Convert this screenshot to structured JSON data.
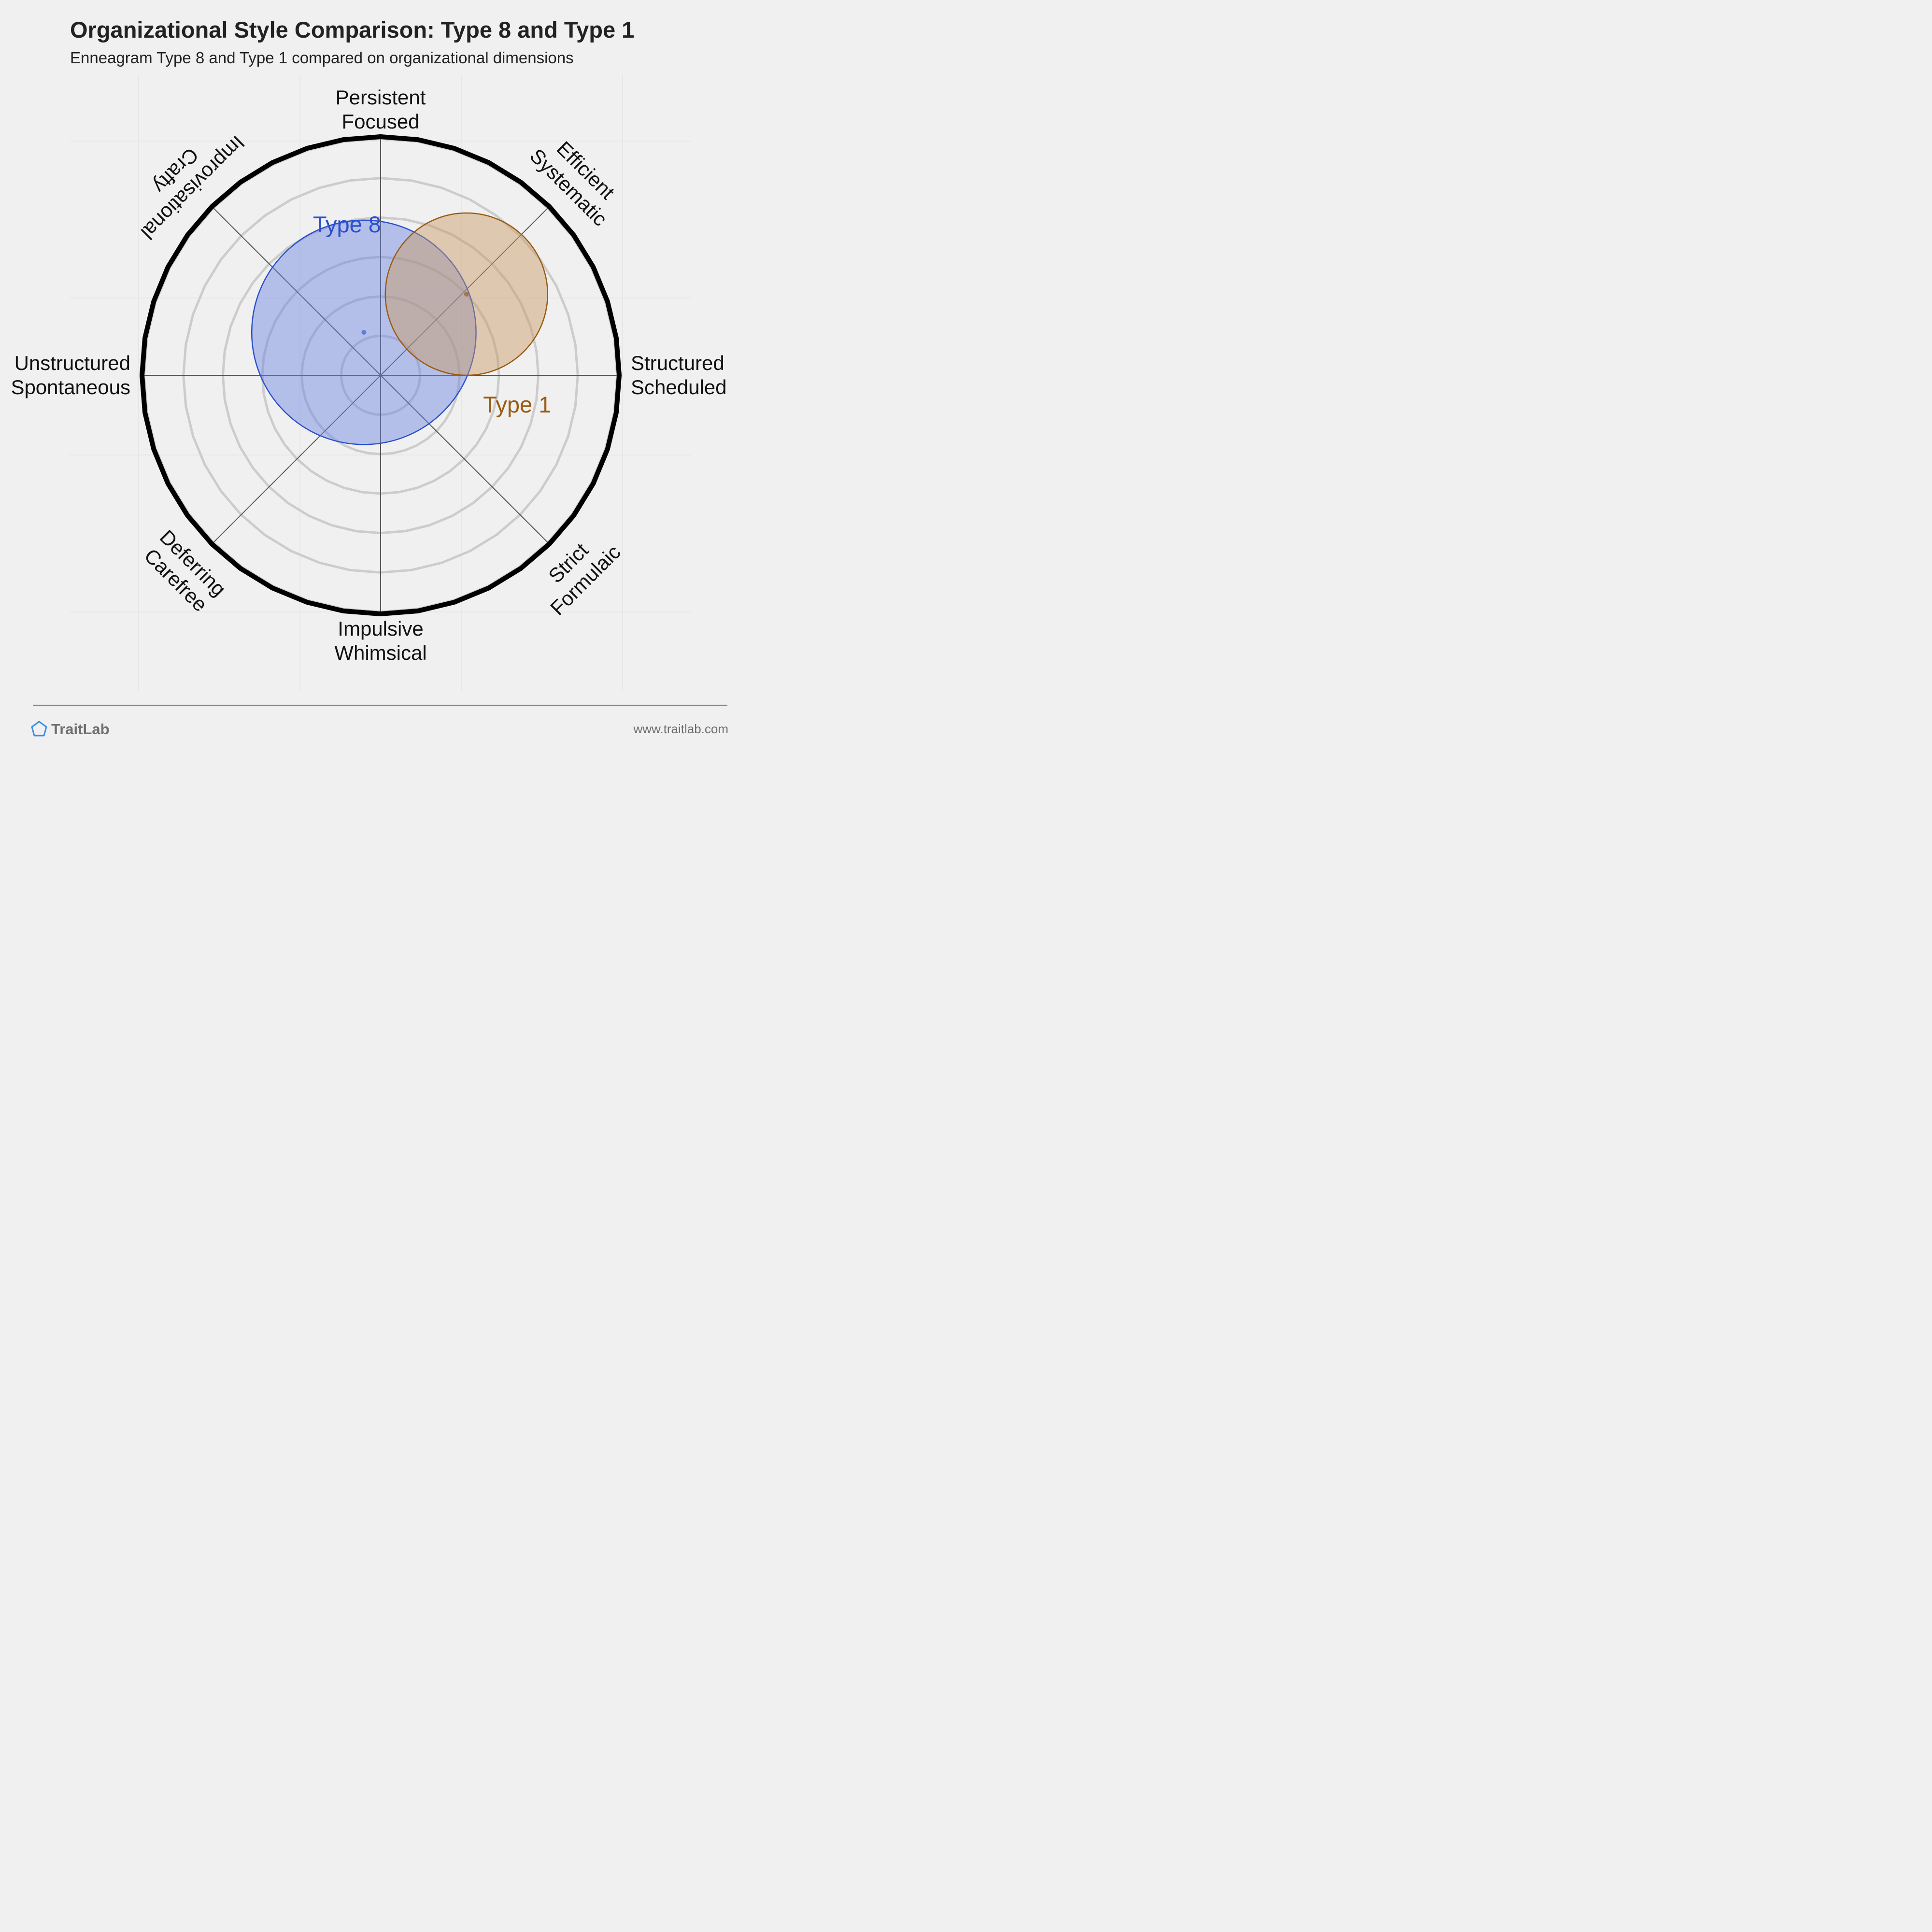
{
  "chart_data": {
    "type": "radar",
    "title": "Organizational Style Comparison: Type 8 and Type 1",
    "subtitle": "Enneagram Type 8 and Type 1 compared on organizational dimensions",
    "axes": [
      {
        "lines": [
          "Persistent",
          "Focused"
        ]
      },
      {
        "lines": [
          "Efficient",
          "Systematic"
        ]
      },
      {
        "lines": [
          "Structured",
          "Scheduled"
        ]
      },
      {
        "lines": [
          "Strict",
          "Formulaic"
        ]
      },
      {
        "lines": [
          "Impulsive",
          "Whimsical"
        ]
      },
      {
        "lines": [
          "Deferring",
          "Carefree"
        ]
      },
      {
        "lines": [
          "Unstructured",
          "Spontaneous"
        ]
      },
      {
        "lines": [
          "Improvisational",
          "Crafty"
        ]
      }
    ],
    "grid": true,
    "rings": 6,
    "series": [
      {
        "name": "Type 8",
        "color": "#2a4fce",
        "fill": "#6a82e0",
        "center": [
          -0.07,
          0.18
        ],
        "radius": 0.47
      },
      {
        "name": "Type 1",
        "color": "#9a5a10",
        "fill": "#c89a62",
        "center": [
          0.36,
          0.34
        ],
        "radius": 0.34
      }
    ]
  },
  "branding": {
    "name": "TraitLab",
    "url": "www.traitlab.com",
    "logo_icon": "pentagon-icon",
    "logo_color": "#3a8ee6"
  }
}
